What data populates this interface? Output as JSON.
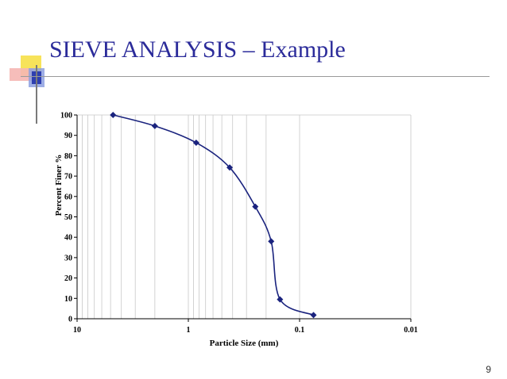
{
  "slide": {
    "title": "SIEVE ANALYSIS – Example",
    "page_number": "9"
  },
  "colors": {
    "title": "#2b2b9a",
    "series": "#1a237e",
    "accent_yellow": "#f7e35a",
    "accent_pink": "#f5b6b2",
    "accent_blue": "#2e3fb0"
  },
  "chart_data": {
    "type": "scatter",
    "xlabel": "Particle Size (mm)",
    "ylabel": "Percent Finer %",
    "x_scale": "log",
    "x_reversed": true,
    "xlim": [
      10,
      0.01
    ],
    "ylim": [
      0,
      100
    ],
    "x_ticks": [
      10,
      1,
      0.1,
      0.01
    ],
    "x_tick_labels": [
      "10",
      "1",
      "0.1",
      "0.01"
    ],
    "y_ticks": [
      0,
      10,
      20,
      30,
      40,
      50,
      60,
      70,
      80,
      90,
      100
    ],
    "grid": "vertical log minor lines",
    "series": [
      {
        "marker": "diamond",
        "smooth_line": true,
        "x": [
          4.75,
          2.0,
          0.85,
          0.425,
          0.25,
          0.18,
          0.15,
          0.075
        ],
        "y": [
          100,
          94.6,
          86.4,
          74.2,
          55.0,
          38.0,
          9.5,
          1.8
        ]
      }
    ]
  }
}
